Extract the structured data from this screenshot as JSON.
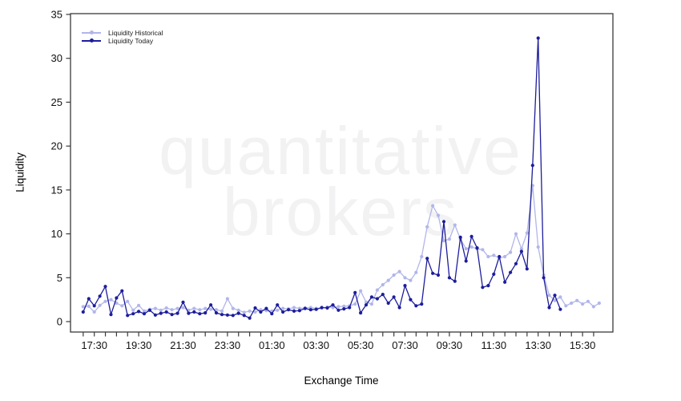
{
  "watermark": {
    "line1": "quantitative",
    "line2": "brokers",
    "color": "#f2f2f3"
  },
  "axes": {
    "x_label": "Exchange Time",
    "y_label": "Liquidity"
  },
  "chart_data": {
    "type": "line",
    "title": "",
    "xlabel": "Exchange Time",
    "ylabel": "Liquidity",
    "ylim": [
      0,
      35
    ],
    "grid": false,
    "legend_position": "top-left",
    "y_tick_labels": [
      "0",
      "5",
      "10",
      "15",
      "20",
      "25",
      "30",
      "35"
    ],
    "x_tick_labels": [
      "17:30",
      "19:30",
      "21:30",
      "23:30",
      "01:30",
      "03:30",
      "05:30",
      "07:30",
      "09:30",
      "11:30",
      "13:30",
      "15:30"
    ],
    "x_start": "17:00",
    "x_interval_minutes": 15,
    "series": [
      {
        "name": "Liquidity Historical",
        "color": "#b1b6ea",
        "values": [
          1.7,
          1.75,
          1.1,
          1.85,
          2.3,
          2.5,
          2.1,
          1.8,
          2.3,
          1.3,
          1.85,
          1.2,
          1.4,
          1.5,
          1.3,
          1.55,
          1.35,
          1.5,
          1.6,
          1.3,
          1.5,
          1.35,
          1.5,
          1.4,
          1.35,
          1.2,
          2.6,
          1.5,
          1.3,
          1.05,
          1.2,
          1.1,
          1.35,
          1.25,
          1.2,
          1.3,
          1.5,
          1.45,
          1.6,
          1.5,
          1.55,
          1.6,
          1.5,
          1.55,
          1.65,
          1.6,
          1.7,
          1.75,
          1.8,
          2.0,
          3.5,
          2.2,
          2.0,
          3.6,
          4.2,
          4.7,
          5.3,
          5.7,
          5.0,
          4.7,
          5.6,
          7.4,
          10.8,
          13.2,
          12.1,
          9.2,
          9.4,
          11.0,
          9.4,
          8.3,
          8.5,
          8.3,
          8.2,
          7.4,
          7.55,
          7.25,
          7.4,
          7.9,
          10.0,
          8.3,
          10.1,
          15.5,
          8.5,
          5.3,
          3.0,
          2.4,
          2.8,
          1.8,
          2.1,
          2.4,
          2.0,
          2.3,
          1.7,
          2.1
        ]
      },
      {
        "name": "Liquidity Today",
        "color": "#1d1d9c",
        "values": [
          1.1,
          2.6,
          1.8,
          2.9,
          4.0,
          0.8,
          2.7,
          3.5,
          0.7,
          0.9,
          1.15,
          0.9,
          1.3,
          0.75,
          0.95,
          1.1,
          0.8,
          0.95,
          2.2,
          0.95,
          1.1,
          0.9,
          1.0,
          1.9,
          1.0,
          0.8,
          0.75,
          0.7,
          0.95,
          0.7,
          0.4,
          1.55,
          1.1,
          1.5,
          0.9,
          1.9,
          1.1,
          1.35,
          1.2,
          1.25,
          1.5,
          1.35,
          1.4,
          1.6,
          1.55,
          1.9,
          1.3,
          1.45,
          1.6,
          3.3,
          1.0,
          1.9,
          2.8,
          2.6,
          3.1,
          2.1,
          2.8,
          1.6,
          4.1,
          2.5,
          1.8,
          2.0,
          7.2,
          5.5,
          5.3,
          11.4,
          5.0,
          4.6,
          9.6,
          6.9,
          9.7,
          8.4,
          3.9,
          4.1,
          5.4,
          7.4,
          4.5,
          5.6,
          6.6,
          8.0,
          6.0,
          17.8,
          32.3,
          5.0,
          1.6,
          3.0,
          1.4
        ]
      }
    ]
  }
}
